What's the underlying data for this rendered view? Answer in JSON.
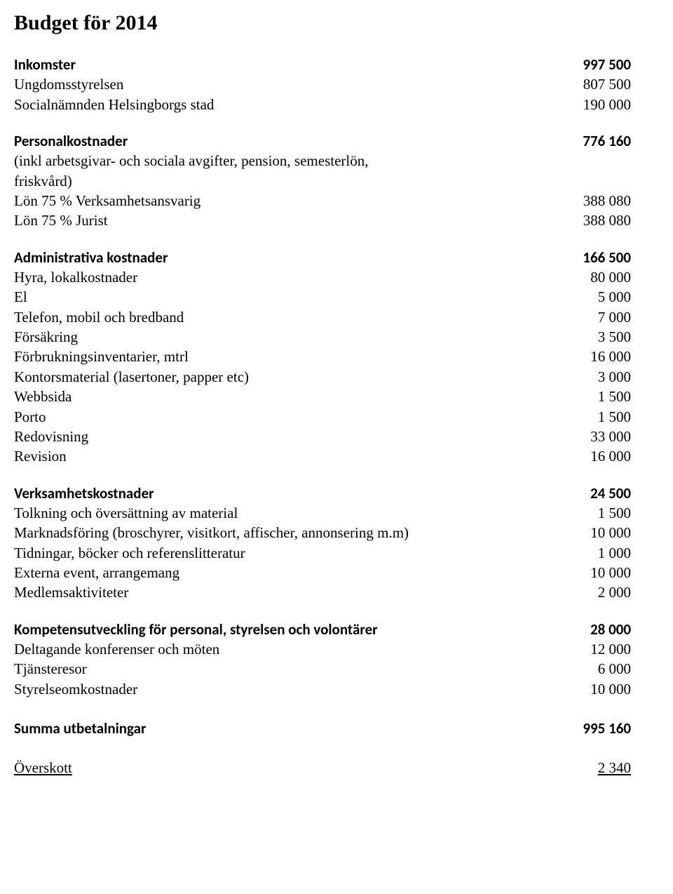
{
  "meta": {
    "text_color": "#000000",
    "background_color": "#ffffff",
    "serif_font": "Times New Roman",
    "sans_font": "Calibri",
    "title_fontsize": 30,
    "body_fontsize": 21
  },
  "title": "Budget för 2014",
  "sections": [
    {
      "header": {
        "label": "Inkomster",
        "value": "997 500",
        "label_bold_sans": true,
        "value_bold_sans": true
      },
      "items": [
        {
          "label": "Ungdomsstyrelsen",
          "value": "807 500"
        },
        {
          "label": "Socialnämnden Helsingborgs stad",
          "value": "190 000"
        }
      ]
    },
    {
      "header": {
        "label": "Personalkostnader",
        "value": "776 160",
        "label_bold_sans": true,
        "value_bold_sans": true
      },
      "items": [
        {
          "label": "(inkl arbetsgivar- och sociala avgifter, pension, semesterlön,\nfriskvård)",
          "value": ""
        },
        {
          "label": "Lön 75 % Verksamhetsansvarig",
          "value": "388 080"
        },
        {
          "label": "Lön 75 % Jurist",
          "value": "388 080"
        }
      ]
    },
    {
      "header": {
        "label": "Administrativa kostnader",
        "value": "166 500",
        "label_bold_sans": true,
        "value_bold_sans": true
      },
      "items": [
        {
          "label": "Hyra, lokalkostnader",
          "value": "80 000"
        },
        {
          "label": "El",
          "value": "5 000"
        },
        {
          "label": "Telefon, mobil och bredband",
          "value": "7 000"
        },
        {
          "label": "Försäkring",
          "value": "3 500"
        },
        {
          "label": "Förbrukningsinventarier, mtrl",
          "value": "16 000"
        },
        {
          "label": "Kontorsmaterial (lasertoner, papper etc)",
          "value": "3 000"
        },
        {
          "label": "Webbsida",
          "value": "1 500"
        },
        {
          "label": "Porto",
          "value": "1 500"
        },
        {
          "label": "Redovisning",
          "value": "33 000"
        },
        {
          "label": "Revision",
          "value": "16 000"
        }
      ]
    },
    {
      "header": {
        "label": "Verksamhetskostnader",
        "value": "24 500",
        "label_bold_sans": true,
        "value_bold_sans": true
      },
      "items": [
        {
          "label": "Tolkning och översättning av material",
          "value": "1 500"
        },
        {
          "label": "Marknadsföring (broschyrer, visitkort, affischer, annonsering m.m)",
          "value": "10 000"
        },
        {
          "label": "Tidningar, böcker och referenslitteratur",
          "value": "1 000"
        },
        {
          "label": "Externa event, arrangemang",
          "value": "10 000"
        },
        {
          "label": "Medlemsaktiviteter",
          "value": "2 000"
        }
      ]
    },
    {
      "header": {
        "label": "Kompetensutveckling för personal, styrelsen och volontärer",
        "value": "28 000",
        "label_bold_sans": true,
        "value_bold_sans": true
      },
      "items": [
        {
          "label": "Deltagande konferenser och möten",
          "value": "12 000"
        },
        {
          "label": "Tjänsteresor",
          "value": "6 000"
        },
        {
          "label": "Styrelseomkostnader",
          "value": "10 000"
        }
      ]
    }
  ],
  "summary": {
    "label": "Summa utbetalningar",
    "value": "995 160",
    "label_bold_sans": true,
    "value_bold_sans": true
  },
  "surplus": {
    "label": "Överskott",
    "value": "2 340",
    "underline": true
  }
}
